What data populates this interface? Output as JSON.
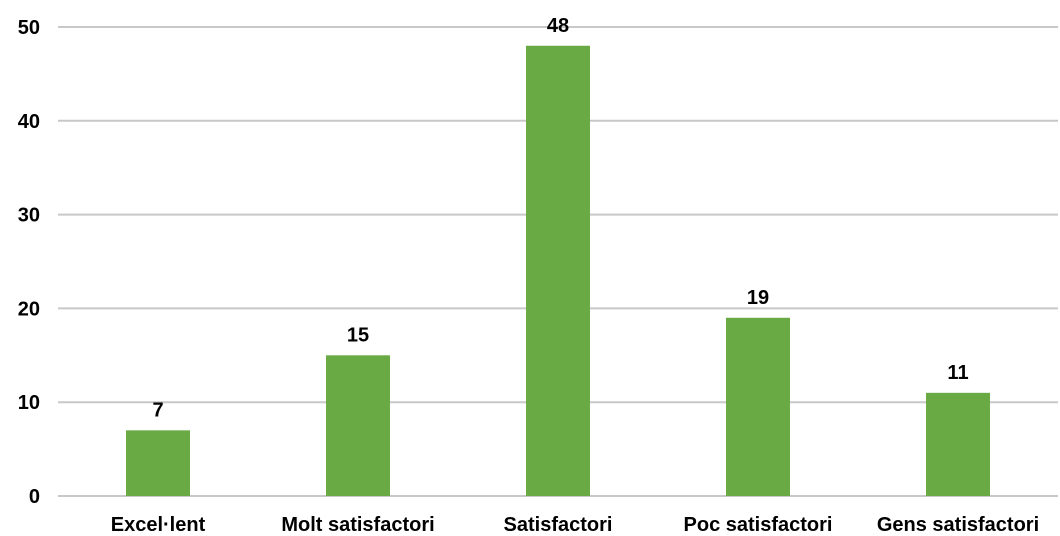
{
  "chart_data": {
    "type": "bar",
    "title": "",
    "xlabel": "",
    "ylabel": "",
    "categories": [
      "Excel·lent",
      "Molt satisfactori",
      "Satisfactori",
      "Poc satisfactori",
      "Gens satisfactori"
    ],
    "values": [
      7,
      15,
      48,
      19,
      11
    ],
    "data_labels": [
      "7",
      "15",
      "48",
      "19",
      "11"
    ],
    "ylim": [
      0,
      50
    ],
    "yticks": [
      0,
      10,
      20,
      30,
      40,
      50
    ],
    "ytick_labels": [
      "0",
      "10",
      "20",
      "30",
      "40",
      "50"
    ],
    "grid": true,
    "legend": "none",
    "bar_color": "#6aaa45",
    "grid_color": "#c8c8c8"
  }
}
